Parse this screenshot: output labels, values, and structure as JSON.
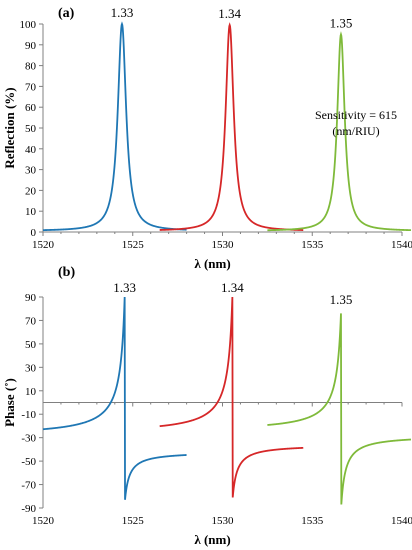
{
  "chart_data": [
    {
      "panel_label": "(a)",
      "type": "line",
      "xlabel": "λ (nm)",
      "ylabel": "Reflection (%)",
      "xlim": [
        1520,
        1540
      ],
      "ylim": [
        0,
        100
      ],
      "xticks": [
        1520,
        1525,
        1530,
        1535,
        1540
      ],
      "yticks": [
        0,
        10,
        20,
        30,
        40,
        50,
        60,
        70,
        80,
        90,
        100
      ],
      "x_tick_labels": [
        "1520",
        "1525",
        "1530",
        "1535",
        "1540"
      ],
      "y_tick_labels": [
        "0",
        "10",
        "20",
        "30",
        "40",
        "50",
        "60",
        "70",
        "80",
        "90",
        "100"
      ],
      "annotation": [
        "Sensitivity = 615",
        "(nm/RIU)"
      ],
      "series": [
        {
          "label": "1.33",
          "color": "#1f77b4",
          "x_range": [
            1520,
            1528
          ],
          "peak_x": 1524.4,
          "peak_y": 100,
          "width": 0.28,
          "floor": 0.5
        },
        {
          "label": "1.34",
          "color": "#d62728",
          "x_range": [
            1526.5,
            1534.5
          ],
          "peak_x": 1530.4,
          "peak_y": 99.5,
          "width": 0.27,
          "floor": 0.5
        },
        {
          "label": "1.35",
          "color": "#7fba3a",
          "x_range": [
            1532.5,
            1540.5
          ],
          "peak_x": 1536.6,
          "peak_y": 95,
          "width": 0.25,
          "floor": 0.5
        }
      ]
    },
    {
      "panel_label": "(b)",
      "type": "line",
      "xlabel": "λ (nm)",
      "ylabel": "Phase (˚)",
      "xlim": [
        1520,
        1540
      ],
      "ylim": [
        -90,
        90
      ],
      "xticks": [
        1520,
        1525,
        1530,
        1535,
        1540
      ],
      "yticks": [
        -90,
        -70,
        -50,
        -30,
        -10,
        10,
        30,
        50,
        70,
        90
      ],
      "x_tick_labels": [
        "1520",
        "1525",
        "1530",
        "1535",
        "1540"
      ],
      "y_tick_labels": [
        "-90",
        "-70",
        "-50",
        "-30",
        "-10",
        "10",
        "30",
        "50",
        "70",
        "90"
      ],
      "series": [
        {
          "label": "1.33",
          "color": "#1f77b4",
          "x_range": [
            1520,
            1528
          ],
          "res_x": 1524.55,
          "top": 90,
          "bottom": -83,
          "left_level": -29,
          "right_level": -42
        },
        {
          "label": "1.34",
          "color": "#d62728",
          "x_range": [
            1526.5,
            1534.5
          ],
          "res_x": 1530.55,
          "top": 90,
          "bottom": -81,
          "left_level": -27,
          "right_level": -36
        },
        {
          "label": "1.35",
          "color": "#7fba3a",
          "x_range": [
            1532.5,
            1540.5
          ],
          "res_x": 1536.6,
          "top": 76,
          "bottom": -87,
          "left_level": -25,
          "right_level": -28
        }
      ]
    }
  ]
}
